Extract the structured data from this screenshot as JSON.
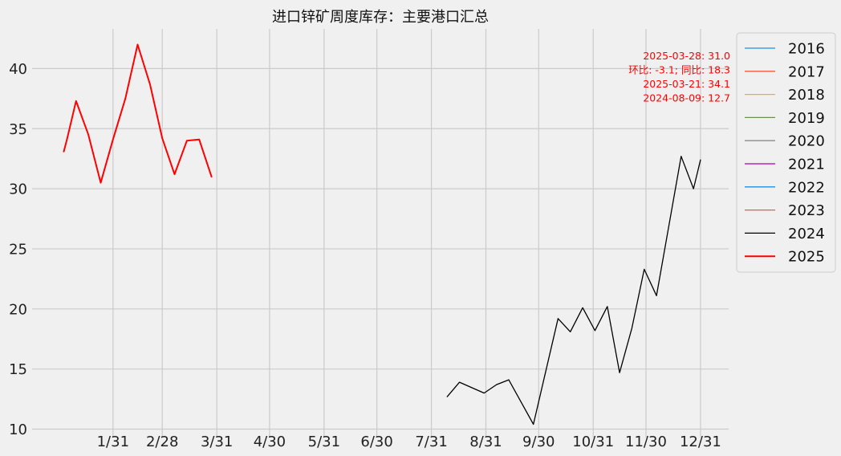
{
  "chart_data": {
    "type": "line",
    "title": "进口锌矿周度库存：主要港口汇总",
    "xlabel": "",
    "ylabel": "",
    "x_axis": {
      "ticks": [
        {
          "label": "1/31",
          "day": 31
        },
        {
          "label": "2/28",
          "day": 59
        },
        {
          "label": "3/31",
          "day": 90
        },
        {
          "label": "4/30",
          "day": 120
        },
        {
          "label": "5/31",
          "day": 151
        },
        {
          "label": "6/30",
          "day": 181
        },
        {
          "label": "7/31",
          "day": 212
        },
        {
          "label": "8/31",
          "day": 243
        },
        {
          "label": "9/30",
          "day": 273
        },
        {
          "label": "10/31",
          "day": 304
        },
        {
          "label": "11/30",
          "day": 334
        },
        {
          "label": "12/31",
          "day": 365
        }
      ],
      "range_days": [
        -15,
        381
      ]
    },
    "y_axis": {
      "ticks": [
        10,
        15,
        20,
        25,
        30,
        35,
        40
      ],
      "ylim": [
        9.3,
        43.3
      ]
    },
    "grid": true,
    "legend_placement": "outside-right-top",
    "series": [
      {
        "name": "2016",
        "color": "#1f8fe0",
        "width": 1.3,
        "points": []
      },
      {
        "name": "2017",
        "color": "#f05a3a",
        "width": 1.3,
        "points": []
      },
      {
        "name": "2018",
        "color": "#e5ae38",
        "width": 1.3,
        "points": []
      },
      {
        "name": "2019",
        "color": "#6d904f",
        "width": 1.3,
        "points": []
      },
      {
        "name": "2020",
        "color": "#8b8b8b",
        "width": 1.3,
        "points": []
      },
      {
        "name": "2021",
        "color": "#b000b0",
        "width": 1.3,
        "points": []
      },
      {
        "name": "2022",
        "color": "#1f8fe0",
        "width": 1.3,
        "points": []
      },
      {
        "name": "2023",
        "color": "#f05a3a",
        "width": 1.3,
        "points": []
      },
      {
        "name": "2024",
        "color": "#000000",
        "width": 1.3,
        "points": [
          {
            "x": "08-09",
            "y": 12.7
          },
          {
            "x": "08-16",
            "y": 13.9
          },
          {
            "x": "08-30",
            "y": 13.0
          },
          {
            "x": "09-06",
            "y": 13.7
          },
          {
            "x": "09-13",
            "y": 14.1
          },
          {
            "x": "09-27",
            "y": 10.4
          },
          {
            "x": "10-11",
            "y": 19.2
          },
          {
            "x": "10-18",
            "y": 18.1
          },
          {
            "x": "10-25",
            "y": 20.1
          },
          {
            "x": "11-01",
            "y": 18.2
          },
          {
            "x": "11-08",
            "y": 20.2
          },
          {
            "x": "11-15",
            "y": 14.7
          },
          {
            "x": "11-22",
            "y": 18.4
          },
          {
            "x": "11-29",
            "y": 23.3
          },
          {
            "x": "12-06",
            "y": 21.1
          },
          {
            "x": "12-20",
            "y": 32.7
          },
          {
            "x": "12-27",
            "y": 30.0
          },
          {
            "x": "12-31",
            "y": 32.4
          }
        ]
      },
      {
        "name": "2025",
        "color": "#ff0000",
        "width": 2,
        "points": [
          {
            "x": "01-03",
            "y": 33.1
          },
          {
            "x": "01-05",
            "y": 34.2
          },
          {
            "x": "01-10",
            "y": 37.3
          },
          {
            "x": "01-17",
            "y": 34.5
          },
          {
            "x": "01-24",
            "y": 30.5
          },
          {
            "x": "01-31",
            "y": 34.1
          },
          {
            "x": "02-07",
            "y": 37.5
          },
          {
            "x": "02-14",
            "y": 42.0
          },
          {
            "x": "02-21",
            "y": 38.7
          },
          {
            "x": "02-28",
            "y": 34.2
          },
          {
            "x": "03-07",
            "y": 31.2
          },
          {
            "x": "03-14",
            "y": 34.0
          },
          {
            "x": "03-21",
            "y": 34.1
          },
          {
            "x": "03-28",
            "y": 31.0
          }
        ]
      }
    ],
    "annotation": {
      "color": "#ff0000",
      "lines": [
        "2025-03-28: 31.0",
        "环比: -3.1; 同比: 18.3",
        "2025-03-21: 34.1",
        "2024-08-09: 12.7"
      ]
    }
  }
}
